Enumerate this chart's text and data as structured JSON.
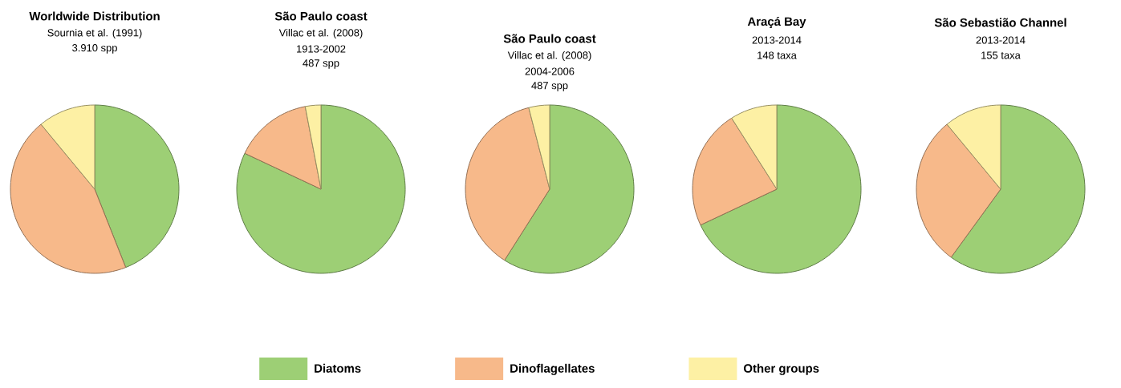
{
  "chart_data": [
    {
      "type": "pie",
      "title": "Worldwide Distribution",
      "subtitle": "Sournia et al. (1991)",
      "annotations": [
        "3.910 spp"
      ],
      "categories": [
        "Diatoms",
        "Dinoflagellates",
        "Other groups"
      ],
      "values": [
        44,
        45,
        11
      ],
      "colors": [
        "#9dcf75",
        "#f7b98a",
        "#fdf0a4"
      ],
      "legend": "bottom"
    },
    {
      "type": "pie",
      "title": "São Paulo coast",
      "subtitle": "Villac et al. (2008)",
      "annotations": [
        "1913-2002",
        "487 spp"
      ],
      "categories": [
        null,
        null,
        null
      ],
      "values": [
        82,
        15,
        3
      ],
      "colors": [
        "#9dcf75",
        "#f7b98a",
        "#fdf0a4"
      ]
    },
    {
      "type": "pie",
      "title": "São Paulo coast",
      "subtitle": "Villac et al. (2008)",
      "annotations": [
        "2004-2006",
        "487 spp"
      ],
      "categories": [
        null,
        null,
        null
      ],
      "values": [
        59,
        37,
        4
      ],
      "colors": [
        "#9dcf75",
        "#f7b98a",
        "#fdf0a4"
      ]
    },
    {
      "type": "pie",
      "title": "Araçá Bay",
      "subtitle": "2013-2014",
      "annotations": [
        "148 taxa"
      ],
      "categories": [
        null,
        null,
        null
      ],
      "values": [
        68,
        23,
        9
      ],
      "colors": [
        "#9dcf75",
        "#f7b98a",
        "#fdf0a4"
      ]
    },
    {
      "type": "pie",
      "title": "São Sebastião Channel",
      "subtitle": "2013-2014",
      "annotations": [
        "155 taxa"
      ],
      "categories": [
        null,
        null,
        null
      ],
      "values": [
        60,
        29,
        11
      ],
      "colors": [
        "#9dcf75",
        "#f7b98a",
        "#fdf0a4"
      ]
    }
  ]
}
